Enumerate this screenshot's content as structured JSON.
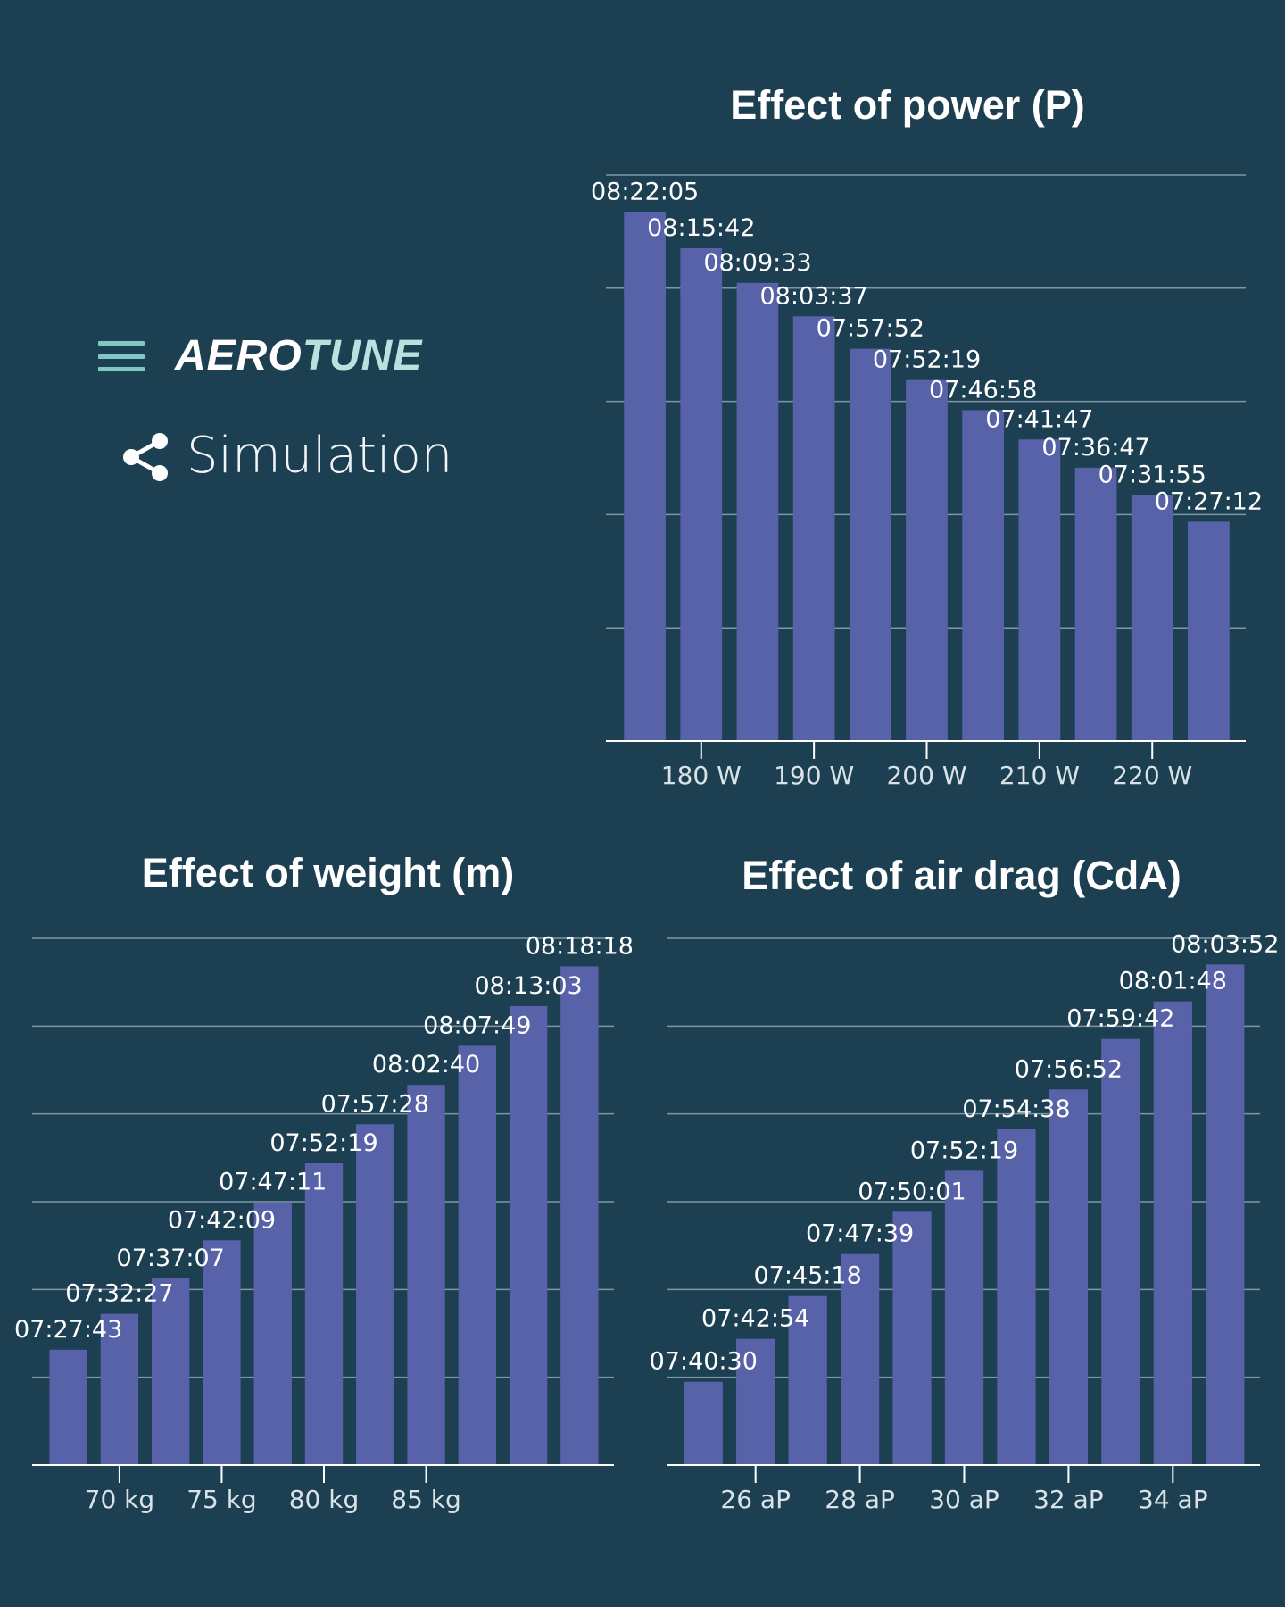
{
  "header": {
    "logo_part1": "AERO",
    "logo_part2": "TUNE",
    "section_label": "Simulation",
    "menu_icon": "hamburger-menu-icon",
    "section_icon": "share-nodes-icon"
  },
  "colors": {
    "background": "#1d3f52",
    "bar": "#5862a8",
    "grid": "#7f97a4",
    "logo_accent": "#b9e1de",
    "menu_icon": "#7ec9c4"
  },
  "chart_data": [
    {
      "id": "power",
      "type": "bar",
      "title": "Effect of power (P)",
      "categories": [
        175,
        180,
        185,
        190,
        195,
        200,
        205,
        210,
        215,
        220,
        225
      ],
      "tick_labels": [
        {
          "x": 180,
          "label": "180 W"
        },
        {
          "x": 190,
          "label": "190 W"
        },
        {
          "x": 200,
          "label": "200 W"
        },
        {
          "x": 210,
          "label": "210 W"
        },
        {
          "x": 220,
          "label": "220 W"
        }
      ],
      "values_seconds": [
        30125,
        29742,
        29373,
        29017,
        28672,
        28339,
        28018,
        27707,
        27407,
        27115,
        26832
      ],
      "data_labels": [
        "08:22:05",
        "08:15:42",
        "08:09:33",
        "08:03:37",
        "07:57:52",
        "07:52:19",
        "07:46:58",
        "07:41:47",
        "07:36:47",
        "07:31:55",
        "07:27:12"
      ],
      "ylim": [
        24500,
        30520
      ],
      "grid": true,
      "xlabel": "",
      "ylabel": ""
    },
    {
      "id": "weight",
      "type": "bar",
      "title": "Effect of weight (m)",
      "categories": [
        67.5,
        70,
        72.5,
        75,
        77.5,
        80,
        82.5,
        85,
        87.5,
        90,
        92.5
      ],
      "tick_labels": [
        {
          "x": 70,
          "label": "70 kg"
        },
        {
          "x": 75,
          "label": "75 kg"
        },
        {
          "x": 80,
          "label": "80 kg"
        },
        {
          "x": 85,
          "label": "85 kg"
        }
      ],
      "values_seconds": [
        26863,
        27147,
        27427,
        27729,
        28031,
        28339,
        28648,
        28960,
        29269,
        29583,
        29898
      ],
      "data_labels": [
        "07:27:43",
        "07:32:27",
        "07:37:07",
        "07:42:09",
        "07:47:11",
        "07:52:19",
        "07:57:28",
        "08:02:40",
        "08:07:49",
        "08:13:03",
        "08:18:18"
      ],
      "ylim": [
        25950,
        30120
      ],
      "grid": true,
      "xlabel": "",
      "ylabel": ""
    },
    {
      "id": "drag",
      "type": "bar",
      "title": "Effect of air drag (CdA)",
      "categories": [
        25,
        26,
        27,
        28,
        29,
        30,
        31,
        32,
        33,
        34,
        35
      ],
      "tick_labels": [
        {
          "x": 26,
          "label": "26 aP"
        },
        {
          "x": 28,
          "label": "28 aP"
        },
        {
          "x": 30,
          "label": "30 aP"
        },
        {
          "x": 32,
          "label": "32 aP"
        },
        {
          "x": 34,
          "label": "34 aP"
        }
      ],
      "values_seconds": [
        27630,
        27774,
        27918,
        28059,
        28201,
        28339,
        28478,
        28612,
        28782,
        28908,
        29032
      ],
      "data_labels": [
        "07:40:30",
        "07:42:54",
        "07:45:18",
        "07:47:39",
        "07:50:01",
        "07:52:19",
        "07:54:38",
        "07:56:52",
        "07:59:42",
        "08:01:48",
        "08:03:52"
      ],
      "ylim": [
        27350,
        29120
      ],
      "grid": true,
      "xlabel": "",
      "ylabel": ""
    }
  ]
}
